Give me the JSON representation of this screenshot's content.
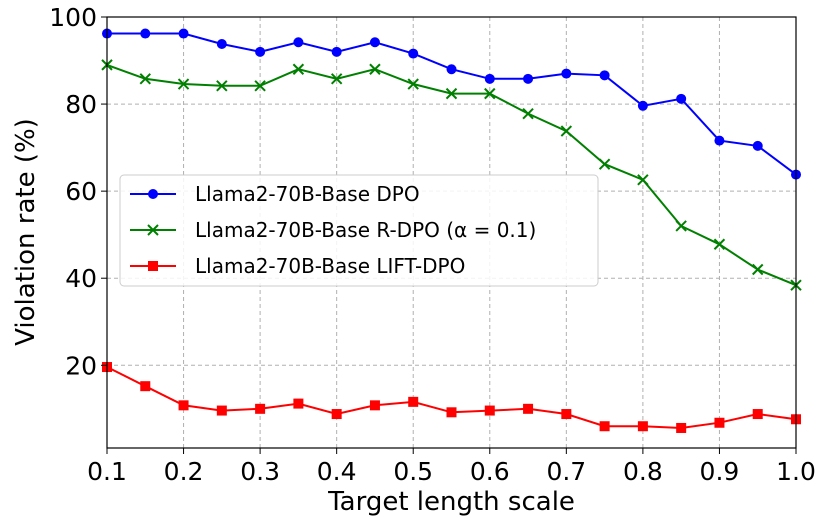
{
  "chart_data": {
    "type": "line",
    "title": "",
    "xlabel": "Target length scale",
    "ylabel": "Violation rate (%)",
    "xlim": [
      0.1,
      1.0
    ],
    "ylim": [
      1,
      100
    ],
    "grid": true,
    "legend_position": "center-left",
    "xticks": [
      "0.1",
      "0.2",
      "0.3",
      "0.4",
      "0.5",
      "0.6",
      "0.7",
      "0.8",
      "0.9",
      "1.0"
    ],
    "yticks": [
      "20",
      "40",
      "60",
      "80",
      "100"
    ],
    "x": [
      0.1,
      0.15,
      0.2,
      0.25,
      0.3,
      0.35,
      0.4,
      0.45,
      0.5,
      0.55,
      0.6,
      0.65,
      0.7,
      0.75,
      0.8,
      0.85,
      0.9,
      0.95,
      1.0
    ],
    "series": [
      {
        "name": "Llama2-70B-Base DPO",
        "color": "#0000ff",
        "marker": "circle",
        "values": [
          96.2,
          96.2,
          96.2,
          93.8,
          92.0,
          94.2,
          92.0,
          94.2,
          91.6,
          88.0,
          85.8,
          85.8,
          87.0,
          86.6,
          79.6,
          81.2,
          71.6,
          70.4,
          63.8
        ]
      },
      {
        "name": "Llama2-70B-Base R-DPO (α = 0.1)",
        "color": "#008000",
        "marker": "x",
        "values": [
          89.0,
          85.8,
          84.6,
          84.2,
          84.2,
          88.0,
          85.8,
          88.0,
          84.6,
          82.4,
          82.4,
          77.8,
          73.8,
          66.2,
          62.6,
          52.0,
          47.8,
          42.0,
          38.4
        ]
      },
      {
        "name": "Llama2-70B-Base LIFT-DPO",
        "color": "#ff0000",
        "marker": "square",
        "values": [
          19.6,
          15.2,
          10.8,
          9.6,
          10.0,
          11.2,
          8.8,
          10.8,
          11.6,
          9.2,
          9.6,
          10.0,
          8.8,
          6.0,
          6.0,
          5.6,
          6.8,
          8.8,
          7.6
        ]
      }
    ]
  }
}
